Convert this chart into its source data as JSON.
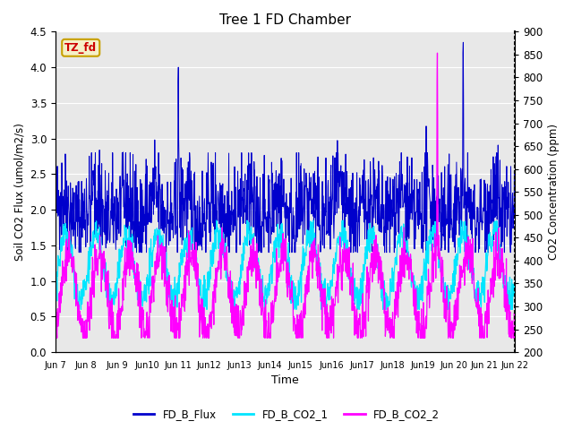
{
  "title": "Tree 1 FD Chamber",
  "ylabel_left": "Soil CO2 Flux (umol/m2/s)",
  "ylabel_right": "CO2 Concentration (ppm)",
  "xlabel": "Time",
  "ylim_left": [
    0.0,
    4.5
  ],
  "ylim_right": [
    200,
    900
  ],
  "annotation_text": "TZ_fd",
  "annotation_color": "#cc0000",
  "annotation_bg": "#f5f0c8",
  "annotation_border": "#c8a000",
  "flux_color": "#0000cc",
  "co2_1_color": "#00e5ff",
  "co2_2_color": "#ff00ff",
  "legend_labels": [
    "FD_B_Flux",
    "FD_B_CO2_1",
    "FD_B_CO2_2"
  ],
  "x_tick_labels": [
    "Jun 7",
    "Jun 8",
    "Jun 9",
    "Jun 10",
    "Jun 11",
    "Jun12",
    "Jun13",
    "Jun14",
    "Jun15",
    "Jun16",
    "Jun17",
    "Jun18",
    "Jun19",
    "Jun 20",
    "Jun 21",
    "Jun 22"
  ],
  "n_days": 15,
  "seed": 42,
  "bg_color": "#e8e8e8",
  "grid_color": "#ffffff"
}
